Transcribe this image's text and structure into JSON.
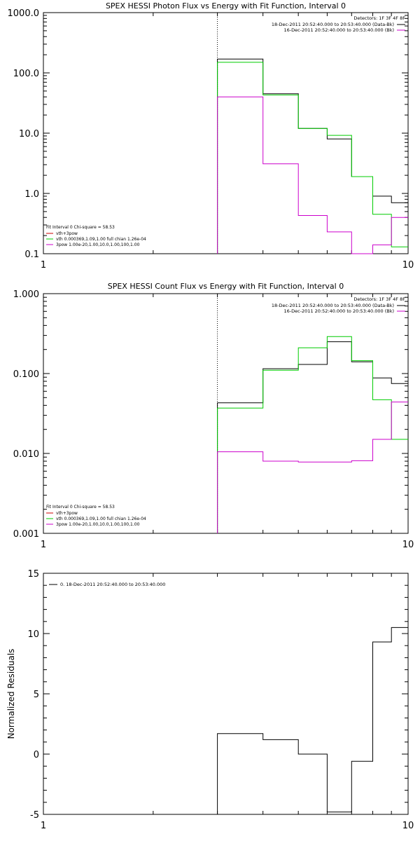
{
  "chart_data": [
    {
      "type": "line",
      "step": true,
      "title": "SPEX HESSI Photon Flux vs Energy with Fit Function, Interval 0",
      "xlabel": "",
      "ylabel": "",
      "xscale": "log",
      "yscale": "log",
      "xlim": [
        1,
        10
      ],
      "ylim": [
        0.1,
        1000
      ],
      "x_ticks": [
        "1",
        "10"
      ],
      "y_ticks": [
        {
          "value": 0.1,
          "label": "0.1"
        },
        {
          "value": 1,
          "label": "1.0"
        },
        {
          "value": 10,
          "label": "10.0"
        },
        {
          "value": 100,
          "label": "100.0"
        },
        {
          "value": 1000,
          "label": "1000.0"
        }
      ],
      "vline_x": 3,
      "edges": [
        3,
        4,
        5,
        6,
        7,
        8,
        9,
        10
      ],
      "series": [
        {
          "color": "#000000",
          "values": [
            170,
            45,
            12,
            8,
            1.9,
            0.9,
            0.7
          ]
        },
        {
          "color": "#00cc00",
          "values": [
            150,
            43,
            12,
            9.2,
            1.9,
            0.45,
            0.13
          ]
        },
        {
          "color": "#cc00cc",
          "values": [
            40,
            3.1,
            0.43,
            0.23,
            0.1,
            0.14,
            0.4
          ]
        }
      ],
      "legend_topright": {
        "header": "Detectors: 1F 3F 4F 8F",
        "entries": [
          {
            "text": "18-Dec-2011 20:52:40.000 to 20:53:40.000 (Data-Bk)",
            "color": "#000000"
          },
          {
            "text": "16-Dec-2011 20:52:40.000 to 20:53:40.000 (Bk)",
            "color": "#cc00cc"
          }
        ]
      },
      "legend_bottomleft": {
        "header": "Fit Interval 0   Chi-square = 58.53",
        "entries": [
          {
            "text": "vth+3pow",
            "color": "#cc0000"
          },
          {
            "text": "vth 0.000369,1.09,1.00   full chian 1.26e-04",
            "color": "#00cc00"
          },
          {
            "text": "3pow 1.00e-20,1.00,10.0,1.00,100,1.00",
            "color": "#cc00cc"
          }
        ]
      }
    },
    {
      "type": "line",
      "step": true,
      "title": "SPEX HESSI Count Flux vs Energy with Fit Function, Interval 0",
      "xlabel": "",
      "ylabel": "",
      "xscale": "log",
      "yscale": "log",
      "xlim": [
        1,
        10
      ],
      "ylim": [
        0.001,
        1
      ],
      "x_ticks": [
        "1",
        "10"
      ],
      "y_ticks": [
        {
          "value": 0.001,
          "label": "0.001"
        },
        {
          "value": 0.01,
          "label": "0.010"
        },
        {
          "value": 0.1,
          "label": "0.100"
        },
        {
          "value": 1,
          "label": "1.000"
        }
      ],
      "vline_x": 3,
      "edges": [
        3,
        4,
        5,
        6,
        7,
        8,
        9,
        10
      ],
      "series": [
        {
          "color": "#000000",
          "values": [
            0.043,
            0.115,
            0.13,
            0.25,
            0.14,
            0.088,
            0.075
          ]
        },
        {
          "color": "#00cc00",
          "values": [
            0.037,
            0.11,
            0.21,
            0.29,
            0.145,
            0.047,
            0.015
          ]
        },
        {
          "color": "#cc00cc",
          "values": [
            0.0105,
            0.008,
            0.0078,
            0.0078,
            0.0081,
            0.015,
            0.044
          ]
        }
      ],
      "legend_topright": {
        "header": "Detectors: 1F 3F 4F 8F",
        "entries": [
          {
            "text": "18-Dec-2011 20:52:40.000 to 20:53:40.000 (Data-Bk)",
            "color": "#000000"
          },
          {
            "text": "16-Dec-2011 20:52:40.000 to 20:53:40.000 (Bk)",
            "color": "#cc00cc"
          }
        ]
      },
      "legend_bottomleft": {
        "header": "Fit Interval 0   Chi-square = 58.53",
        "entries": [
          {
            "text": "vth+3pow",
            "color": "#cc0000"
          },
          {
            "text": "vth 0.000369,1.09,1.00   full chian 1.26e-04",
            "color": "#00cc00"
          },
          {
            "text": "3pow 1.00e-20,1.00,10.0,1.00,100,1.00",
            "color": "#cc00cc"
          }
        ]
      }
    },
    {
      "type": "line",
      "step": true,
      "title": "",
      "xlabel": "",
      "ylabel": "Normalized Residuals",
      "xscale": "log",
      "yscale": "linear",
      "xlim": [
        1,
        10
      ],
      "ylim": [
        -5,
        15
      ],
      "x_ticks": [
        "1",
        "10"
      ],
      "y_ticks": [
        {
          "value": -5,
          "label": "-5"
        },
        {
          "value": 0,
          "label": "0"
        },
        {
          "value": 5,
          "label": "5"
        },
        {
          "value": 10,
          "label": "10"
        },
        {
          "value": 15,
          "label": "15"
        }
      ],
      "edges": [
        3,
        4,
        5,
        6,
        7,
        8,
        9,
        10
      ],
      "series": [
        {
          "color": "#000000",
          "values": [
            1.7,
            1.2,
            0.0,
            -4.8,
            -0.6,
            9.3,
            10.5
          ]
        }
      ],
      "legend_topleft": {
        "entries": [
          {
            "text": "0. 18-Dec-2011 20:52:40.000 to 20:53:40.000",
            "color": "#000000"
          }
        ]
      }
    }
  ]
}
